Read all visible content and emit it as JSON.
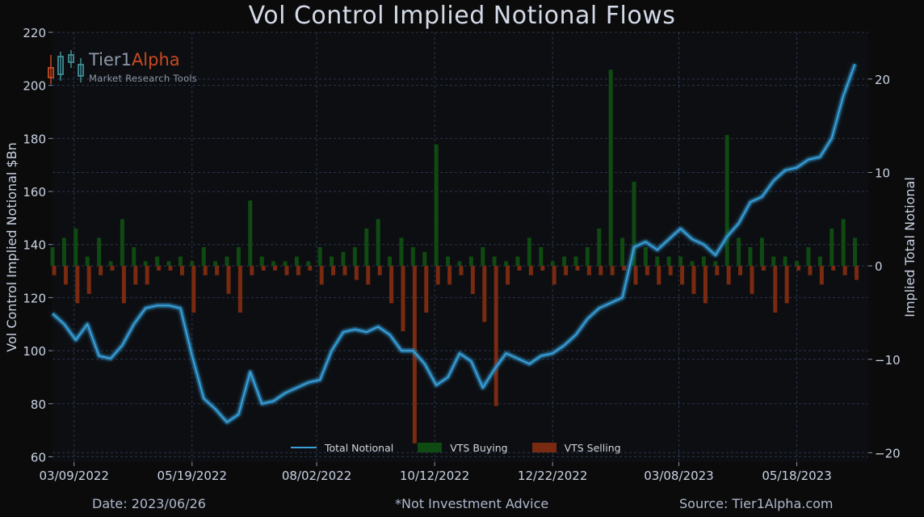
{
  "title": "Vol Control Implied Notional Flows",
  "footer": {
    "date": "Date: 2023/06/26",
    "note": "*Not Investment Advice",
    "source": "Source: Tier1Alpha.com"
  },
  "logo": {
    "name_part1": "Tier1",
    "name_part2": "Alpha",
    "tagline": "Market  Research Tools"
  },
  "colors": {
    "line": "#3aa0d8",
    "buying": "#0f4a12",
    "selling": "#7a2a10",
    "grid": "#2a3550"
  },
  "chart_data": {
    "type": "line",
    "ylabel": "Vol Control Implied Notional $Bn",
    "y2label": "Implied Total Notional",
    "ylim": [
      58,
      220
    ],
    "y2lim": [
      -21,
      25
    ],
    "y_ticks": [
      "60",
      "80",
      "100",
      "120",
      "140",
      "160",
      "180",
      "200",
      "220"
    ],
    "y2_ticks": [
      "−20",
      "−10",
      "0",
      "10",
      "20"
    ],
    "x_tick_labels": [
      "03/09/2022",
      "05/19/2022",
      "08/02/2022",
      "10/12/2022",
      "12/22/2022",
      "03/08/2023",
      "05/18/2023"
    ],
    "legend": [
      "Total Notional",
      "VTS Buying",
      "VTS Selling"
    ],
    "legend_position": "bottom-center",
    "grid": true,
    "x": [
      "2022-02-24",
      "2022-03-03",
      "2022-03-10",
      "2022-03-17",
      "2022-03-24",
      "2022-03-31",
      "2022-04-07",
      "2022-04-14",
      "2022-04-21",
      "2022-04-28",
      "2022-05-05",
      "2022-05-12",
      "2022-05-19",
      "2022-05-26",
      "2022-06-02",
      "2022-06-09",
      "2022-06-16",
      "2022-06-23",
      "2022-06-30",
      "2022-07-07",
      "2022-07-14",
      "2022-07-21",
      "2022-07-28",
      "2022-08-04",
      "2022-08-11",
      "2022-08-18",
      "2022-08-25",
      "2022-09-01",
      "2022-09-08",
      "2022-09-15",
      "2022-09-22",
      "2022-09-29",
      "2022-10-06",
      "2022-10-13",
      "2022-10-20",
      "2022-10-27",
      "2022-11-03",
      "2022-11-10",
      "2022-11-17",
      "2022-11-24",
      "2022-12-01",
      "2022-12-08",
      "2022-12-15",
      "2022-12-22",
      "2022-12-29",
      "2023-01-05",
      "2023-01-12",
      "2023-01-19",
      "2023-01-26",
      "2023-02-02",
      "2023-02-09",
      "2023-02-16",
      "2023-02-23",
      "2023-03-02",
      "2023-03-09",
      "2023-03-16",
      "2023-03-23",
      "2023-03-30",
      "2023-04-06",
      "2023-04-13",
      "2023-04-20",
      "2023-04-27",
      "2023-05-04",
      "2023-05-11",
      "2023-05-18",
      "2023-05-25",
      "2023-06-01",
      "2023-06-08",
      "2023-06-15",
      "2023-06-22"
    ],
    "series": [
      {
        "name": "Total Notional",
        "axis": "left",
        "values": [
          114,
          110,
          104,
          110,
          98,
          97,
          102,
          110,
          116,
          117,
          117,
          116,
          98,
          82,
          78,
          73,
          76,
          92,
          80,
          81,
          84,
          86,
          88,
          89,
          100,
          107,
          108,
          107,
          109,
          106,
          100,
          100,
          95,
          87,
          90,
          99,
          96,
          86,
          93,
          99,
          97,
          95,
          98,
          99,
          102,
          106,
          112,
          116,
          118,
          120,
          139,
          141,
          138,
          142,
          146,
          142,
          140,
          136,
          143,
          148,
          156,
          158,
          164,
          168,
          169,
          172,
          173,
          180,
          196,
          208
        ]
      },
      {
        "name": "VTS Buying",
        "axis": "right",
        "values": [
          2,
          3,
          4,
          1,
          3,
          0.5,
          5,
          2,
          0.5,
          1,
          0.5,
          1,
          0.5,
          2,
          0.5,
          1,
          2,
          7,
          1,
          0.5,
          0.5,
          1,
          0.5,
          2,
          1,
          1.5,
          2,
          4,
          5,
          1,
          3,
          2,
          1.5,
          13,
          1,
          0.5,
          1,
          2,
          1,
          0.5,
          1,
          3,
          2,
          0.5,
          1,
          1,
          2,
          4,
          21,
          3,
          9,
          2,
          1,
          1,
          1,
          0.5,
          1,
          0.5,
          14,
          3,
          2,
          3,
          1,
          1,
          0.5,
          2,
          1,
          4,
          5,
          3
        ]
      },
      {
        "name": "VTS Selling",
        "axis": "right",
        "values": [
          -1,
          -2,
          -4,
          -3,
          -1,
          -0.5,
          -4,
          -2,
          -2,
          -0.5,
          -0.5,
          -1,
          -5,
          -1,
          -1,
          -3,
          -5,
          -1,
          -0.5,
          -0.5,
          -1,
          -1,
          -0.5,
          -2,
          -1,
          -1,
          -1.5,
          -2,
          -1,
          -4,
          -7,
          -19,
          -5,
          -2,
          -2,
          -1,
          -3,
          -6,
          -15,
          -2,
          -0.5,
          -1,
          -0.5,
          -2,
          -1,
          -0.5,
          -1,
          -1,
          -1,
          -0.5,
          -2,
          -1,
          -2,
          -1,
          -2,
          -3,
          -4,
          -1,
          -2,
          -1,
          -3,
          -0.5,
          -5,
          -4,
          -0.5,
          -1,
          -2,
          -0.5,
          -1,
          -1.5
        ]
      }
    ]
  }
}
